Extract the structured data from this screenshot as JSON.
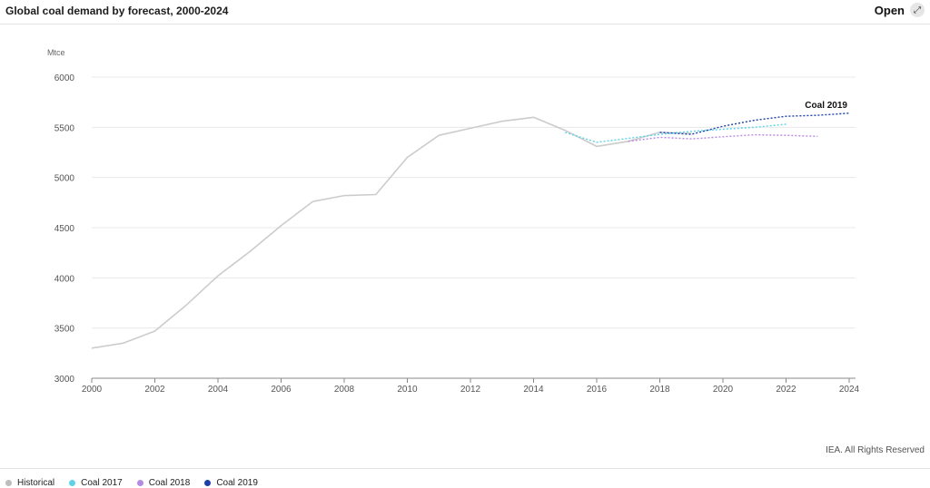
{
  "header": {
    "title": "Global coal demand by forecast, 2000-2024",
    "open_label": "Open",
    "open_icon": "expand-icon"
  },
  "credit": "IEA. All Rights Reserved",
  "legend": [
    {
      "label": "Historical",
      "color": "#bdbdbd"
    },
    {
      "label": "Coal 2017",
      "color": "#5fd3e6"
    },
    {
      "label": "Coal 2018",
      "color": "#b48be0"
    },
    {
      "label": "Coal 2019",
      "color": "#1c3fa8"
    }
  ],
  "chart_data": {
    "type": "line",
    "title": "Global coal demand by forecast, 2000-2024",
    "ylabel": "Mtce",
    "xlabel": "",
    "xlim": [
      2000,
      2024
    ],
    "ylim": [
      3000,
      6000
    ],
    "x_ticks": [
      2000,
      2002,
      2004,
      2006,
      2008,
      2010,
      2012,
      2014,
      2016,
      2018,
      2020,
      2022,
      2024
    ],
    "y_ticks": [
      3000,
      3500,
      4000,
      4500,
      5000,
      5500,
      6000
    ],
    "grid": true,
    "legend_position": "bottom-left",
    "annotation": "Coal 2019",
    "series": [
      {
        "name": "Historical",
        "color": "#cccccc",
        "style": "solid",
        "x": [
          2000,
          2001,
          2002,
          2003,
          2004,
          2005,
          2006,
          2007,
          2008,
          2009,
          2010,
          2011,
          2012,
          2013,
          2014,
          2015,
          2016,
          2017,
          2018,
          2019
        ],
        "y": [
          3300,
          3350,
          3470,
          3730,
          4020,
          4260,
          4520,
          4760,
          4820,
          4830,
          5200,
          5420,
          5490,
          5560,
          5600,
          5470,
          5310,
          5360,
          5450,
          5440
        ]
      },
      {
        "name": "Coal 2017",
        "color": "#5fd3e6",
        "style": "dotted",
        "x": [
          2015,
          2016,
          2017,
          2018,
          2019,
          2020,
          2021,
          2022
        ],
        "y": [
          5450,
          5350,
          5390,
          5430,
          5460,
          5480,
          5500,
          5530
        ]
      },
      {
        "name": "Coal 2018",
        "color": "#b48be0",
        "style": "dotted",
        "x": [
          2017,
          2018,
          2019,
          2020,
          2021,
          2022,
          2023
        ],
        "y": [
          5360,
          5400,
          5385,
          5405,
          5425,
          5420,
          5410
        ]
      },
      {
        "name": "Coal 2019",
        "color": "#1c3fa8",
        "style": "dotted",
        "x": [
          2018,
          2019,
          2020,
          2021,
          2022,
          2023,
          2024
        ],
        "y": [
          5450,
          5430,
          5510,
          5570,
          5610,
          5620,
          5640
        ]
      }
    ]
  }
}
